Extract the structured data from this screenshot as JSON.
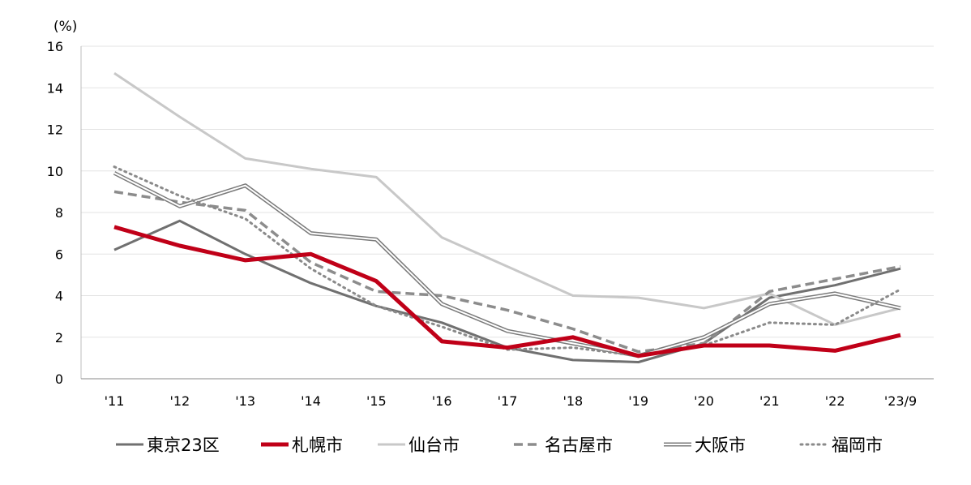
{
  "chart_data": {
    "type": "line",
    "ylabel": "(%)",
    "ylim": [
      0,
      16
    ],
    "yticks": [
      0,
      2,
      4,
      6,
      8,
      10,
      12,
      14,
      16
    ],
    "grid": true,
    "legend_position": "bottom",
    "categories": [
      "'11",
      "'12",
      "'13",
      "'14",
      "'15",
      "'16",
      "'17",
      "'18",
      "'19",
      "'20",
      "'21",
      "'22",
      "'23/9"
    ],
    "series": [
      {
        "name": "東京23区",
        "color": "#707070",
        "style": "solid-medium",
        "values": [
          6.2,
          7.6,
          6.0,
          4.6,
          3.5,
          2.7,
          1.5,
          0.9,
          0.8,
          1.7,
          3.9,
          4.5,
          5.3
        ]
      },
      {
        "name": "札幌市",
        "color": "#c00018",
        "style": "solid-thick",
        "values": [
          7.3,
          6.4,
          5.7,
          6.0,
          4.7,
          1.8,
          1.5,
          2.0,
          1.1,
          1.6,
          1.6,
          1.35,
          2.1
        ]
      },
      {
        "name": "仙台市",
        "color": "#c8c8c8",
        "style": "solid-medium",
        "values": [
          14.7,
          12.6,
          10.6,
          10.1,
          9.7,
          6.8,
          5.4,
          4.0,
          3.9,
          3.4,
          4.1,
          2.6,
          3.4
        ]
      },
      {
        "name": "名古屋市",
        "color": "#8c8c8c",
        "style": "dashed",
        "values": [
          9.0,
          8.5,
          8.1,
          5.6,
          4.2,
          4.0,
          3.3,
          2.4,
          1.3,
          1.7,
          4.2,
          4.8,
          5.4
        ]
      },
      {
        "name": "大阪市",
        "color": "#7a7a7a",
        "style": "double",
        "values": [
          9.9,
          8.3,
          9.3,
          7.0,
          6.7,
          3.6,
          2.3,
          1.7,
          1.1,
          2.0,
          3.6,
          4.1,
          3.4
        ]
      },
      {
        "name": "福岡市",
        "color": "#8a8a8a",
        "style": "dotted",
        "values": [
          10.2,
          8.8,
          7.7,
          5.3,
          3.5,
          2.5,
          1.4,
          1.5,
          1.1,
          1.6,
          2.7,
          2.6,
          4.3
        ]
      }
    ]
  }
}
